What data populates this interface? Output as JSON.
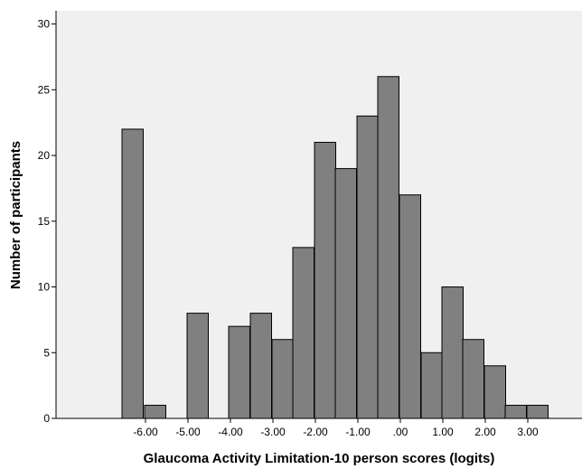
{
  "chart_data": {
    "type": "bar",
    "title": "",
    "xlabel": "Glaucoma Activity Limitation-10 person scores (logits)",
    "ylabel": "Number of participants",
    "xlim": [
      -6.7,
      3.25
    ],
    "ylim": [
      0,
      31
    ],
    "bin_width": 0.5,
    "x_ticks": [
      -6,
      -5,
      -4,
      -3,
      -2,
      -1,
      0,
      1,
      2,
      3
    ],
    "x_tick_labels": [
      "-6.00",
      "-5.00",
      "-4.00",
      "-3.00",
      "-2.00",
      "-1.00",
      ".00",
      "1.00",
      "2.00",
      "3.00"
    ],
    "y_ticks": [
      0,
      5,
      10,
      15,
      20,
      25,
      30
    ],
    "y_tick_labels": [
      "0",
      "5",
      "10",
      "15",
      "20",
      "25",
      "30"
    ],
    "bins": [
      {
        "x": -5.0,
        "count": 22
      },
      {
        "x": -4.5,
        "count": 1
      },
      {
        "x": -3.75,
        "count": 8
      },
      {
        "x": -2.75,
        "count": 7
      },
      {
        "x": -2.25,
        "count": 8
      },
      {
        "x": -1.75,
        "count": 6
      },
      {
        "x": -1.25,
        "count": 13
      },
      {
        "x": -0.75,
        "count": 21
      },
      {
        "x": -0.25,
        "count": 19
      },
      {
        "x": 0.25,
        "count": 23
      },
      {
        "x": 0.75,
        "count": 26
      },
      {
        "x": 1.25,
        "count": 17
      },
      {
        "x": 0.55,
        "count": 5
      },
      {
        "x": 1.05,
        "count": 10
      },
      {
        "x": 1.55,
        "count": 6
      },
      {
        "x": 2.05,
        "count": 4
      },
      {
        "x": 2.15,
        "count": 1
      },
      {
        "x": 2.55,
        "count": 1
      }
    ],
    "grid": false,
    "legend": "none",
    "colors": {
      "bar_fill": "#808080",
      "bar_stroke": "#000000",
      "plot_bg": "#f0f0f0"
    }
  }
}
